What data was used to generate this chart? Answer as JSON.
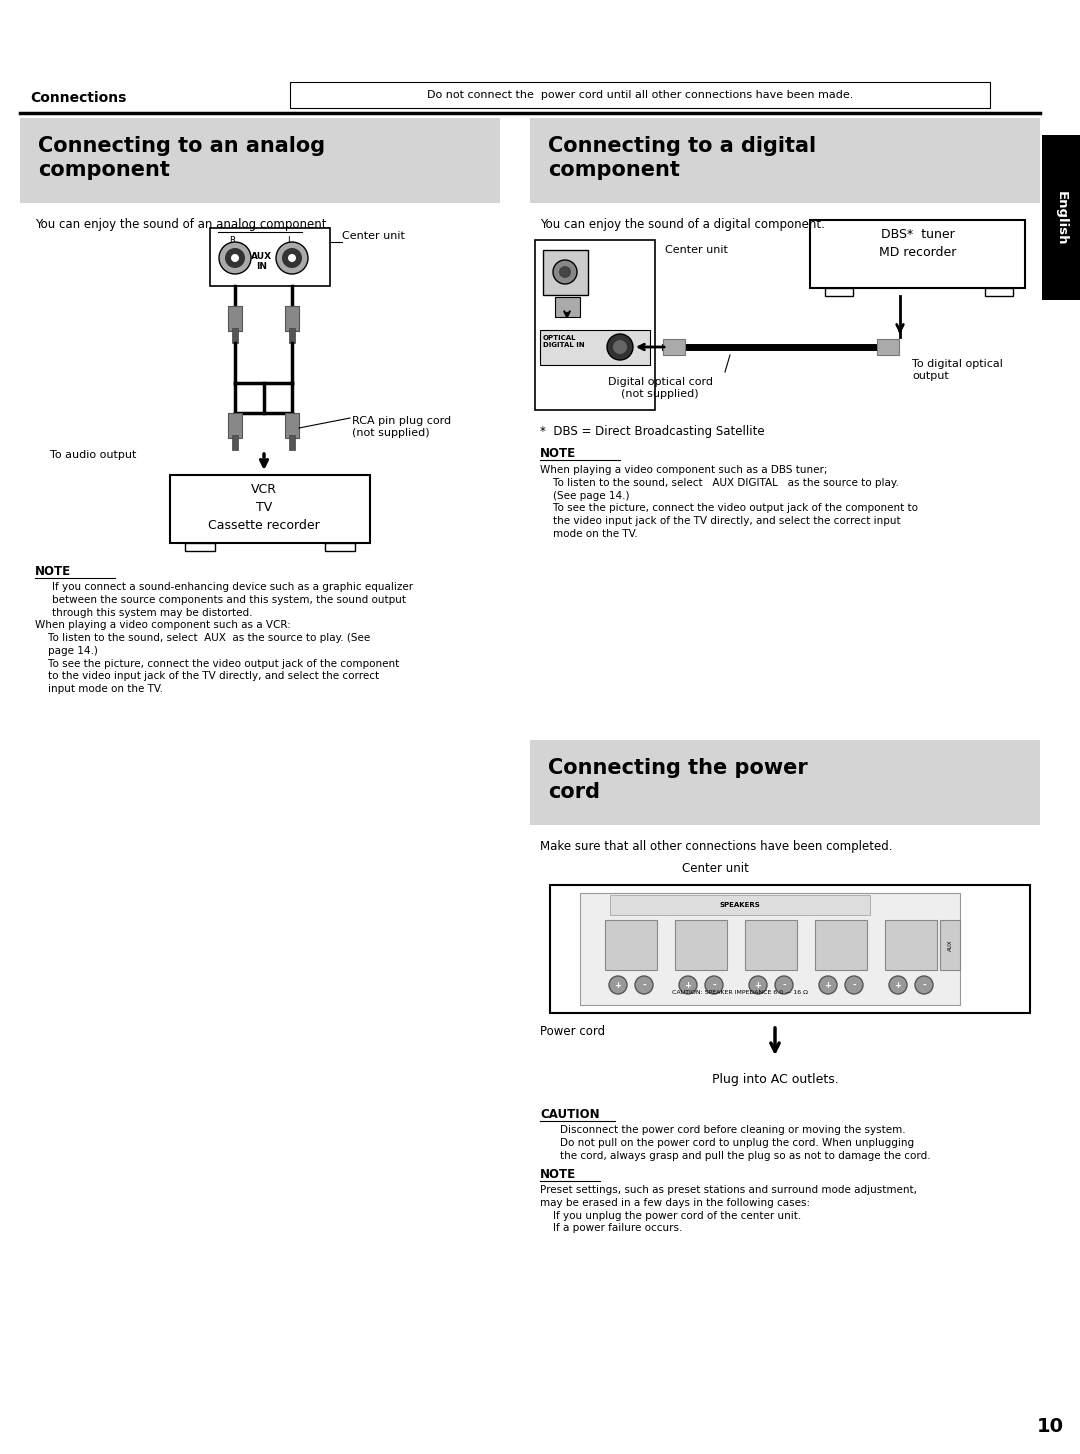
{
  "page_bg": "#ffffff",
  "section_bg": "#d4d4d4",
  "tab_bg": "#000000",
  "tab_text": "#ffffff",
  "tab_label": "English",
  "header_label": "Connections",
  "header_note": "Do not connect the  power cord until all other connections have been made.",
  "page_number": "10",
  "section1_title": "Connecting to an analog\ncomponent",
  "section1_sub": "You can enjoy the sound of an analog component.",
  "section1_center_unit": "Center unit",
  "section1_aux": "AUX\nIN",
  "section1_rca": "RCA pin plug cord\n(not supplied)",
  "section1_audio": "To audio output",
  "section1_box": "VCR\nTV\nCassette recorder",
  "section1_note_title": "NOTE",
  "section1_note1": "If you connect a sound-enhancing device such as a graphic equalizer\nbetween the source components and this system, the sound output\nthrough this system may be distorted.",
  "section1_note2": "When playing a video component such as a VCR:",
  "section1_note3": "    To listen to the sound, select  AUX  as the source to play. (See\n    page 14.)\n    To see the picture, connect the video output jack of the component\n    to the video input jack of the TV directly, and select the correct\n    input mode on the TV.",
  "section2_title": "Connecting to a digital\ncomponent",
  "section2_sub": "You can enjoy the sound of a digital component.",
  "section2_center_unit": "Center unit",
  "section2_optical_label": "OPTICAL\nDIGITAL IN",
  "section2_cord": "Digital optical cord\n(not supplied)",
  "section2_output": "To digital optical\noutput",
  "section2_dbs_box": "DBS*  tuner\nMD recorder",
  "section2_dbs_note": "*  DBS = Direct Broadcasting Satellite",
  "section2_note_title": "NOTE",
  "section2_note": "When playing a video component such as a DBS tuner;\n    To listen to the sound, select   AUX DIGITAL   as the source to play.\n    (See page 14.)\n    To see the picture, connect the video output jack of the component to\n    the video input jack of the TV directly, and select the correct input\n    mode on the TV.",
  "section3_title": "Connecting the power\ncord",
  "section3_sub": "Make sure that all other connections have been completed.",
  "section3_center_unit": "Center unit",
  "section3_power_cord": "Power cord",
  "section3_plug": "Plug into AC outlets.",
  "section3_caution_title": "CAUTION",
  "section3_caution": "Disconnect the power cord before cleaning or moving the system.\nDo not pull on the power cord to unplug the cord. When unplugging\nthe cord, always grasp and pull the plug so as not to damage the cord.",
  "section3_note_title": "NOTE",
  "section3_note": "Preset settings, such as preset stations and surround mode adjustment,\nmay be erased in a few days in the following cases:\n    If you unplug the power cord of the center unit.\n    If a power failure occurs."
}
